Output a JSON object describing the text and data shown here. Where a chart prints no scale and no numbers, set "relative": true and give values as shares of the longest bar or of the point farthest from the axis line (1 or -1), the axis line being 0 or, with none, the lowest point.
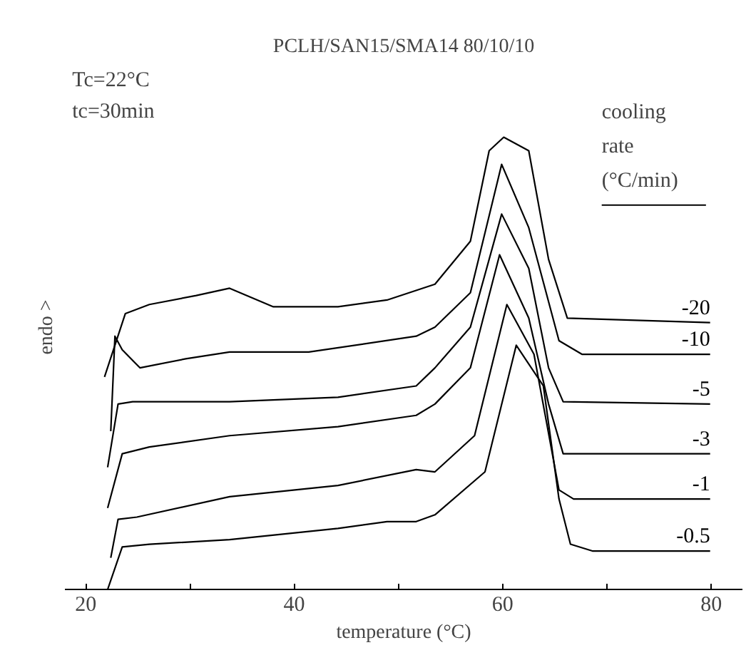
{
  "chart_data": {
    "type": "line",
    "title": "PCLH/SAN15/SMA14 80/10/10",
    "xlabel": "temperature (°C)",
    "ylabel": "endo >",
    "legend_title": "cooling rate (°C/min)",
    "relative": true,
    "annotations": [
      "Tc=22°C",
      "tc=30min"
    ],
    "xlim": [
      18,
      83
    ],
    "xticks": [
      20,
      {
        "value": 30,
        "label": null
      },
      40,
      {
        "value": 50,
        "label": null
      },
      60,
      {
        "value": 70,
        "label": null
      },
      80
    ],
    "grid": false,
    "marker": "none",
    "line_style": "solid",
    "series": [
      {
        "name": "-20",
        "color": "#000000",
        "x": [
          21.8,
          23.8,
          26.1,
          30.6,
          33.8,
          38,
          44.2,
          48.9,
          53.5,
          56.9,
          58.7,
          60.1,
          62.5,
          64.4,
          66.2,
          79.9
        ],
        "values": [
          0.47,
          0.61,
          0.63,
          0.65,
          0.666,
          0.625,
          0.625,
          0.64,
          0.675,
          0.77,
          0.97,
          1.0,
          0.97,
          0.73,
          0.6,
          0.59
        ]
      },
      {
        "name": "-10",
        "color": "#000000",
        "x": [
          22.4,
          22.8,
          23.5,
          25.2,
          29.6,
          33.8,
          41.4,
          51.7,
          53.5,
          56.9,
          59.9,
          62.5,
          65.4,
          67.6,
          79.9
        ],
        "values": [
          0.35,
          0.56,
          0.53,
          0.49,
          0.51,
          0.525,
          0.525,
          0.56,
          0.58,
          0.656,
          0.94,
          0.8,
          0.55,
          0.52,
          0.52
        ]
      },
      {
        "name": "-5",
        "color": "#000000",
        "x": [
          22.1,
          23.1,
          24.5,
          33.8,
          44.2,
          51.7,
          53.5,
          56.9,
          59.9,
          62.5,
          64.4,
          65.8,
          79.9
        ],
        "values": [
          0.27,
          0.41,
          0.415,
          0.415,
          0.425,
          0.45,
          0.49,
          0.58,
          0.83,
          0.71,
          0.49,
          0.415,
          0.41
        ]
      },
      {
        "name": "-3",
        "color": "#000000",
        "x": [
          22.1,
          23.5,
          26.1,
          33.8,
          44.2,
          51.7,
          53.5,
          56.9,
          59.7,
          62.5,
          64.4,
          65.8,
          79.9
        ],
        "values": [
          0.18,
          0.3,
          0.315,
          0.34,
          0.36,
          0.385,
          0.41,
          0.49,
          0.74,
          0.6,
          0.41,
          0.3,
          0.3
        ]
      },
      {
        "name": "-1",
        "color": "#000000",
        "x": [
          22.4,
          23.1,
          24.9,
          33.8,
          44.2,
          51.7,
          53.5,
          57.3,
          60.4,
          63,
          65.4,
          66.8,
          79.9
        ],
        "values": [
          0.07,
          0.155,
          0.16,
          0.205,
          0.23,
          0.265,
          0.26,
          0.34,
          0.63,
          0.52,
          0.22,
          0.2,
          0.2
        ]
      },
      {
        "name": "-0.5",
        "color": "#000000",
        "x": [
          22.1,
          23.5,
          26.1,
          33.8,
          44.2,
          48.9,
          51.7,
          53.5,
          58.3,
          61.3,
          63.9,
          65.4,
          66.5,
          68.6,
          79.9
        ],
        "values": [
          0,
          0.094,
          0.1,
          0.11,
          0.135,
          0.15,
          0.15,
          0.165,
          0.26,
          0.54,
          0.45,
          0.2,
          0.1,
          0.085,
          0.085
        ]
      }
    ]
  }
}
